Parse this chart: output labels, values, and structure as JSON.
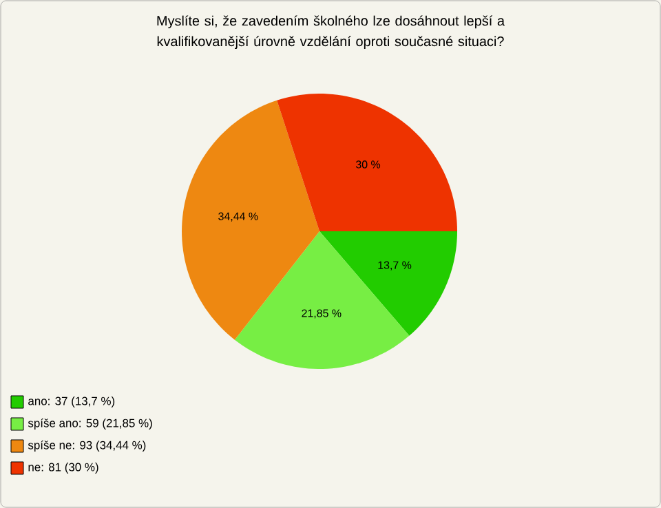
{
  "chart_data": {
    "type": "pie",
    "title": "Myslíte si, že zavedením školného lze dosáhnout lepší a kvalifikovanější úrovně vzdělání oproti současné situaci?",
    "categories": [
      "ano: 37 (13,7 %)",
      "spíše ano: 59 (21,85 %)",
      "spíše ne: 93 (34,44 %)",
      "ne: 81 (30 %)"
    ],
    "values": [
      13.7,
      21.85,
      34.44,
      30
    ],
    "colors": [
      "#22cc00",
      "#77ee44",
      "#ee8811",
      "#ee3300"
    ],
    "value_labels": [
      "13,7 %",
      "21,85 %",
      "34,44 %",
      "30 %"
    ],
    "legend": "bottom left"
  }
}
